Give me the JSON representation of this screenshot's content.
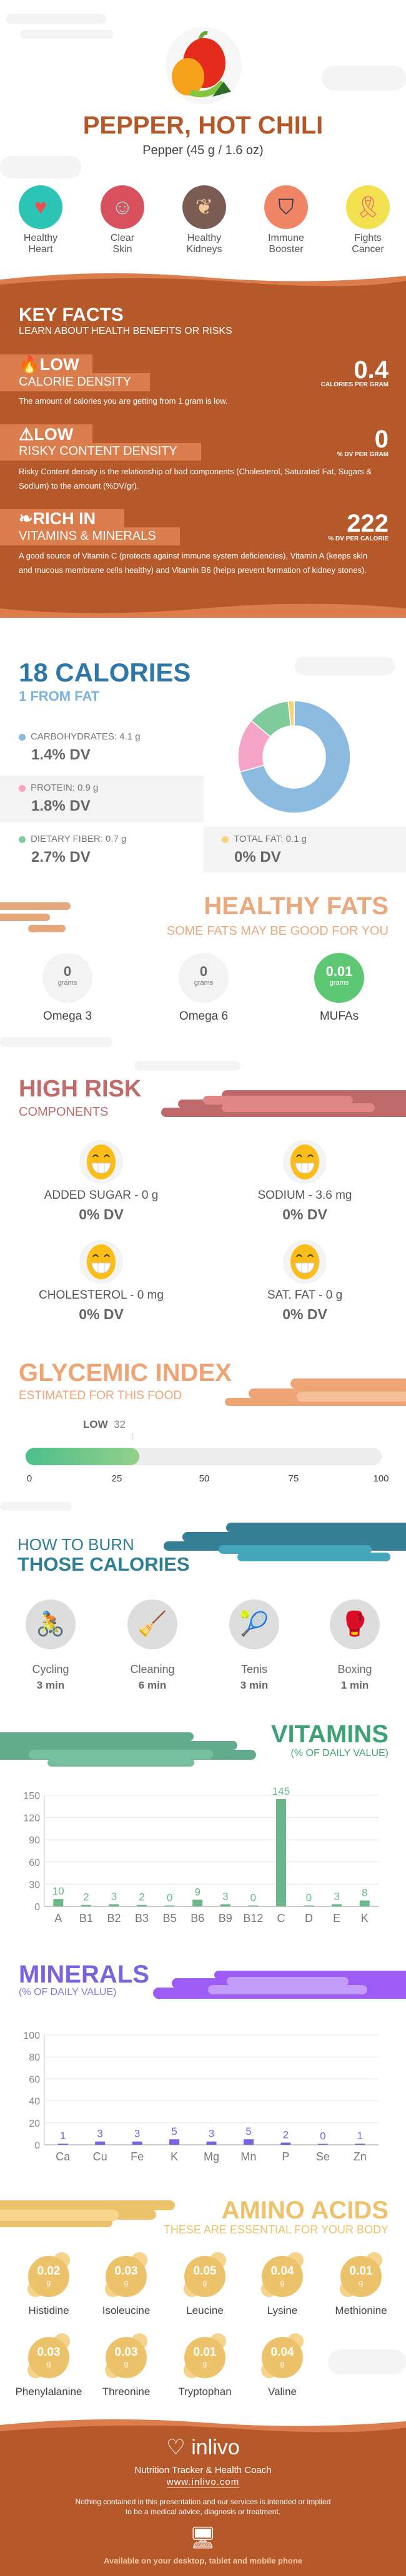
{
  "header": {
    "title": "PEPPER, HOT CHILI",
    "subtitle": "Pepper (45 g / 1.6 oz)",
    "benefits": [
      {
        "label1": "Healthy",
        "label2": "Heart",
        "icon": "heart-icon",
        "color": "#2bc4b5"
      },
      {
        "label1": "Clear",
        "label2": "Skin",
        "icon": "face-mask-icon",
        "color": "#d9505f"
      },
      {
        "label1": "Healthy",
        "label2": "Kidneys",
        "icon": "kidneys-icon",
        "color": "#7a5c52"
      },
      {
        "label1": "Immune",
        "label2": "Booster",
        "icon": "shield-icon",
        "color": "#f08566"
      },
      {
        "label1": "Fights",
        "label2": "Cancer",
        "icon": "ribbon-icon",
        "color": "#f3e04e"
      }
    ]
  },
  "key_facts": {
    "title": "KEY FACTS",
    "subtitle": "LEARN ABOUT HEALTH BENEFITS OR RISKS",
    "items": [
      {
        "level": "LOW",
        "name": "CALORIE DENSITY",
        "value": "0.4",
        "unit": "CALORIES PER GRAM",
        "icon": "flame-icon",
        "desc": "The amount of calories you are getting from 1 gram is low."
      },
      {
        "level": "LOW",
        "name": "RISKY CONTENT DENSITY",
        "value": "0",
        "unit": "% DV PER GRAM",
        "icon": "warning-icon",
        "desc": "Risky Content density is the relationship of bad components (Cholesterol, Saturated Fat, Sugars & Sodium) to the amount (%DV/gr)."
      },
      {
        "level": "RICH  IN",
        "name": "VITAMINS & MINERALS",
        "value": "222",
        "unit": "% DV PER CALORIE",
        "icon": "leaf-icon",
        "desc": "A good source of Vitamin C (protects against immune system deficiencies), Vitamin A (keeps skin and mucous membrane cells healthy) and Vitamin B6 (helps prevent formation of kidney stones)."
      }
    ]
  },
  "calories": {
    "title": "18 CALORIES",
    "subtitle": "1 FROM FAT",
    "macros": [
      {
        "label": "CARBOHYDRATES: 4.1 g",
        "dv": "1.4% DV",
        "color": "#8bbbe0"
      },
      {
        "label": "PROTEIN: 0.9 g",
        "dv": "1.8% DV",
        "color": "#f6a3c8"
      },
      {
        "label": "DIETARY FIBER: 0.7 g",
        "dv": "2.7% DV",
        "color": "#7fcb9c"
      },
      {
        "label": "TOTAL FAT: 0.1 g",
        "dv": "0% DV",
        "color": "#f8d47a"
      }
    ]
  },
  "healthy_fats": {
    "title": "HEALTHY FATS",
    "subtitle": "SOME FATS MAY BE GOOD FOR YOU",
    "items": [
      {
        "value": "0",
        "unit": "grams",
        "name": "Omega 3"
      },
      {
        "value": "0",
        "unit": "grams",
        "name": "Omega 6"
      },
      {
        "value": "0.01",
        "unit": "grams",
        "name": "MUFAs"
      }
    ]
  },
  "high_risk": {
    "title": "HIGH RISK",
    "subtitle": "COMPONENTS",
    "items": [
      {
        "label": "ADDED SUGAR - 0 g",
        "dv": "0% DV",
        "icon": "grin-face-icon"
      },
      {
        "label": "SODIUM - 3.6 mg",
        "dv": "0% DV",
        "icon": "grin-face-icon"
      },
      {
        "label": "CHOLESTEROL - 0 mg",
        "dv": "0% DV",
        "icon": "grin-face-icon"
      },
      {
        "label": "SAT. FAT - 0 g",
        "dv": "0% DV",
        "icon": "grin-face-icon"
      }
    ]
  },
  "glycemic": {
    "title": "GLYCEMIC INDEX",
    "subtitle": "ESTIMATED FOR THIS FOOD",
    "level": "LOW",
    "value": "32",
    "value_num": 32,
    "ticks": [
      "0",
      "25",
      "50",
      "75",
      "100"
    ]
  },
  "burn": {
    "title1": "HOW TO BURN",
    "title2": "THOSE CALORIES",
    "items": [
      {
        "name": "Cycling",
        "time": "3 min",
        "icon": "cyclist-icon"
      },
      {
        "name": "Cleaning",
        "time": "6 min",
        "icon": "cleaning-icon"
      },
      {
        "name": "Tenis",
        "time": "3 min",
        "icon": "tennis-player-icon"
      },
      {
        "name": "Boxing",
        "time": "1 min",
        "icon": "boxer-icon"
      }
    ]
  },
  "vitamins": {
    "title": "VITAMINS",
    "subtitle": "(% OF DAILY VALUE)"
  },
  "minerals": {
    "title": "MINERALS",
    "subtitle": "(% OF DAILY VALUE)"
  },
  "amino": {
    "title": "AMINO ACIDS",
    "subtitle": "THESE ARE ESSENTIAL FOR YOUR BODY",
    "items": [
      {
        "value": "0.02",
        "unit": "g",
        "name": "Histidine"
      },
      {
        "value": "0.03",
        "unit": "g",
        "name": "Isoleucine"
      },
      {
        "value": "0.05",
        "unit": "g",
        "name": "Leucine"
      },
      {
        "value": "0.04",
        "unit": "g",
        "name": "Lysine"
      },
      {
        "value": "0.01",
        "unit": "g",
        "name": "Methionine"
      },
      {
        "value": "0.03",
        "unit": "g",
        "name": "Phenylalanine"
      },
      {
        "value": "0.03",
        "unit": "g",
        "name": "Threonine"
      },
      {
        "value": "0.01",
        "unit": "g",
        "name": "Tryptophan"
      },
      {
        "value": "0.04",
        "unit": "g",
        "name": "Valine"
      }
    ]
  },
  "footer": {
    "brand": "inlivo",
    "tagline": "Nutrition Tracker & Health Coach",
    "url": "www.inlivo.com",
    "disclaimer1": "Nothing contained in this presentation and our services is intended or implied",
    "disclaimer2": "to be a medical advice, diagnosis or treatment.",
    "available": "Available on your desktop, tablet and mobile phone"
  },
  "colors": {
    "brand_brown": "#b5582a",
    "tab": "#dc7d4e",
    "vitamin_bar": "#6ab88a",
    "mineral_bar": "#7b63e0"
  },
  "chart_data": [
    {
      "type": "pie",
      "categories": [
        "Carbohydrates",
        "Protein",
        "Dietary Fiber",
        "Total Fat"
      ],
      "values": [
        4.1,
        0.9,
        0.7,
        0.1
      ],
      "colors": [
        "#8bbbe0",
        "#f6a3c8",
        "#7fcb9c",
        "#f8d47a"
      ]
    },
    {
      "type": "bar",
      "title": "VITAMINS",
      "subtitle": "(% OF DAILY VALUE)",
      "categories": [
        "A",
        "B1",
        "B2",
        "B3",
        "B5",
        "B6",
        "B9",
        "B12",
        "C",
        "D",
        "E",
        "K"
      ],
      "values": [
        10,
        2,
        3,
        2,
        0,
        9,
        3,
        0,
        145,
        0,
        3,
        8
      ],
      "ylim": [
        0,
        150
      ],
      "yticks": [
        0,
        30,
        60,
        90,
        120,
        150
      ],
      "grid": true,
      "color": "#6ab88a"
    },
    {
      "type": "bar",
      "title": "MINERALS",
      "subtitle": "(% OF DAILY VALUE)",
      "categories": [
        "Ca",
        "Cu",
        "Fe",
        "K",
        "Mg",
        "Mn",
        "P",
        "Se",
        "Zn"
      ],
      "values": [
        1,
        3,
        3,
        5,
        3,
        5,
        2,
        0,
        1
      ],
      "ylim": [
        0,
        100
      ],
      "yticks": [
        0,
        20,
        40,
        60,
        80,
        100
      ],
      "grid": true,
      "color": "#7b63e0"
    }
  ]
}
